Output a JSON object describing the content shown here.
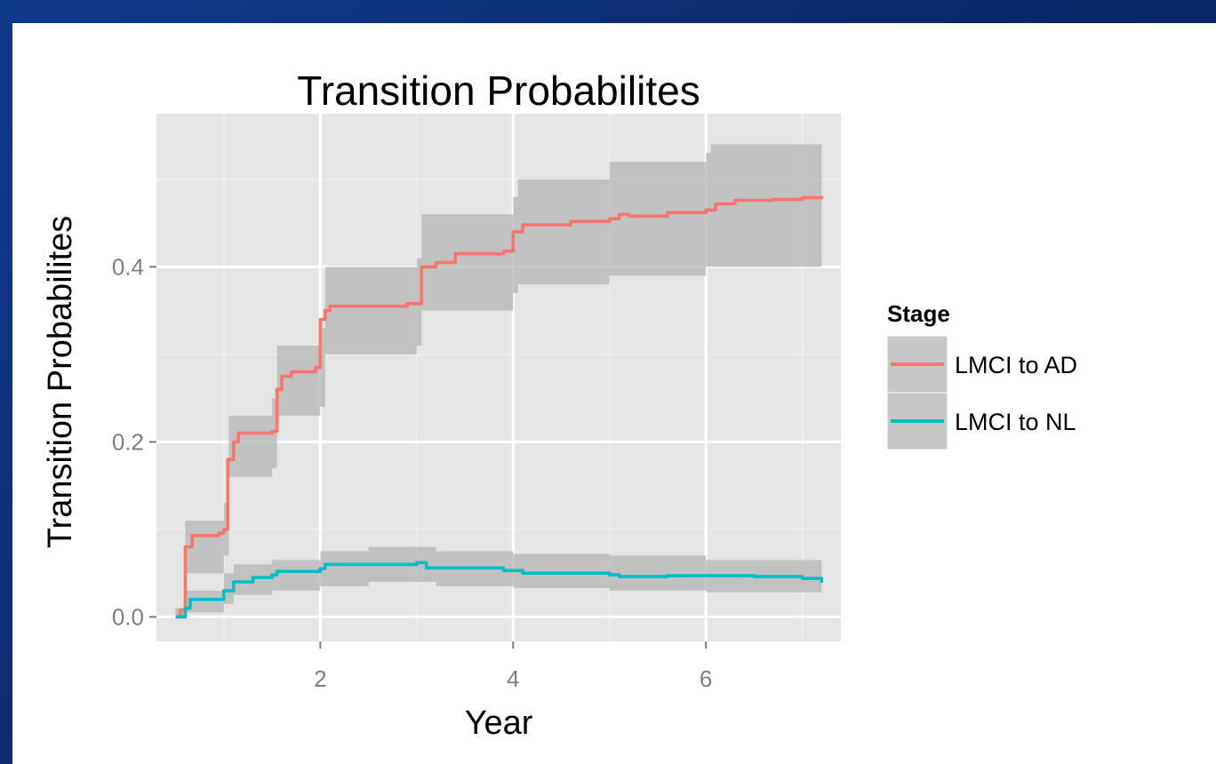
{
  "chart_data": {
    "type": "line",
    "title": "Transition Probabilites",
    "xlabel": "Year",
    "ylabel": "Transition Probabilites",
    "xlim": [
      0.3,
      7.4
    ],
    "ylim": [
      -0.028,
      0.575
    ],
    "x_ticks": [
      2,
      4,
      6
    ],
    "x_tick_labels": [
      "2",
      "4",
      "6"
    ],
    "y_ticks": [
      0.0,
      0.2,
      0.4
    ],
    "y_tick_labels": [
      "0.0",
      "0.2",
      "0.4"
    ],
    "grid": true,
    "legend": {
      "title": "Stage",
      "position": "right"
    },
    "series": [
      {
        "name": "LMCI to AD",
        "color": "#f8766d",
        "points": [
          [
            0.5,
            0.0
          ],
          [
            0.55,
            0.008
          ],
          [
            0.6,
            0.08
          ],
          [
            0.67,
            0.093
          ],
          [
            0.95,
            0.096
          ],
          [
            1.0,
            0.1
          ],
          [
            1.04,
            0.18
          ],
          [
            1.1,
            0.2
          ],
          [
            1.15,
            0.21
          ],
          [
            1.5,
            0.212
          ],
          [
            1.55,
            0.26
          ],
          [
            1.6,
            0.275
          ],
          [
            1.7,
            0.28
          ],
          [
            1.95,
            0.285
          ],
          [
            2.0,
            0.34
          ],
          [
            2.05,
            0.35
          ],
          [
            2.1,
            0.355
          ],
          [
            2.9,
            0.358
          ],
          [
            3.05,
            0.4
          ],
          [
            3.2,
            0.405
          ],
          [
            3.4,
            0.415
          ],
          [
            3.9,
            0.418
          ],
          [
            4.0,
            0.44
          ],
          [
            4.1,
            0.448
          ],
          [
            4.6,
            0.452
          ],
          [
            5.0,
            0.455
          ],
          [
            5.1,
            0.46
          ],
          [
            5.2,
            0.458
          ],
          [
            5.6,
            0.462
          ],
          [
            6.0,
            0.465
          ],
          [
            6.1,
            0.472
          ],
          [
            6.3,
            0.476
          ],
          [
            6.7,
            0.477
          ],
          [
            7.0,
            0.479
          ],
          [
            7.2,
            0.481
          ]
        ],
        "band_upper": [
          [
            0.5,
            0.01
          ],
          [
            0.6,
            0.11
          ],
          [
            1.0,
            0.13
          ],
          [
            1.05,
            0.23
          ],
          [
            1.5,
            0.25
          ],
          [
            1.55,
            0.31
          ],
          [
            2.0,
            0.33
          ],
          [
            2.05,
            0.4
          ],
          [
            3.0,
            0.41
          ],
          [
            3.05,
            0.46
          ],
          [
            4.0,
            0.48
          ],
          [
            4.05,
            0.5
          ],
          [
            5.0,
            0.52
          ],
          [
            6.0,
            0.53
          ],
          [
            6.05,
            0.54
          ],
          [
            7.2,
            0.55
          ]
        ],
        "band_lower": [
          [
            0.5,
            0.0
          ],
          [
            0.6,
            0.05
          ],
          [
            1.0,
            0.07
          ],
          [
            1.05,
            0.16
          ],
          [
            1.5,
            0.17
          ],
          [
            1.55,
            0.23
          ],
          [
            2.0,
            0.24
          ],
          [
            2.05,
            0.3
          ],
          [
            3.0,
            0.31
          ],
          [
            3.05,
            0.35
          ],
          [
            4.0,
            0.37
          ],
          [
            4.05,
            0.38
          ],
          [
            5.0,
            0.39
          ],
          [
            6.0,
            0.4
          ],
          [
            7.2,
            0.41
          ]
        ]
      },
      {
        "name": "LMCI to NL",
        "color": "#00bfc4",
        "points": [
          [
            0.5,
            0.0
          ],
          [
            0.6,
            0.01
          ],
          [
            0.65,
            0.02
          ],
          [
            0.95,
            0.02
          ],
          [
            1.0,
            0.03
          ],
          [
            1.1,
            0.04
          ],
          [
            1.3,
            0.045
          ],
          [
            1.5,
            0.048
          ],
          [
            1.55,
            0.052
          ],
          [
            2.0,
            0.055
          ],
          [
            2.05,
            0.06
          ],
          [
            3.0,
            0.062
          ],
          [
            3.1,
            0.056
          ],
          [
            3.9,
            0.053
          ],
          [
            4.1,
            0.05
          ],
          [
            5.0,
            0.048
          ],
          [
            5.1,
            0.046
          ],
          [
            5.6,
            0.047
          ],
          [
            6.0,
            0.047
          ],
          [
            6.5,
            0.046
          ],
          [
            7.0,
            0.044
          ],
          [
            7.2,
            0.039
          ]
        ],
        "band_upper": [
          [
            0.5,
            0.01
          ],
          [
            0.6,
            0.03
          ],
          [
            1.0,
            0.05
          ],
          [
            1.1,
            0.06
          ],
          [
            1.5,
            0.065
          ],
          [
            2.0,
            0.075
          ],
          [
            2.5,
            0.08
          ],
          [
            3.0,
            0.08
          ],
          [
            3.2,
            0.075
          ],
          [
            4.0,
            0.072
          ],
          [
            5.0,
            0.07
          ],
          [
            6.0,
            0.065
          ],
          [
            7.2,
            0.06
          ]
        ],
        "band_lower": [
          [
            0.5,
            0.0
          ],
          [
            0.6,
            0.005
          ],
          [
            1.0,
            0.015
          ],
          [
            1.1,
            0.025
          ],
          [
            1.5,
            0.03
          ],
          [
            2.0,
            0.035
          ],
          [
            2.5,
            0.04
          ],
          [
            3.0,
            0.04
          ],
          [
            3.2,
            0.035
          ],
          [
            4.0,
            0.033
          ],
          [
            5.0,
            0.03
          ],
          [
            6.0,
            0.028
          ],
          [
            7.2,
            0.025
          ]
        ]
      }
    ]
  }
}
